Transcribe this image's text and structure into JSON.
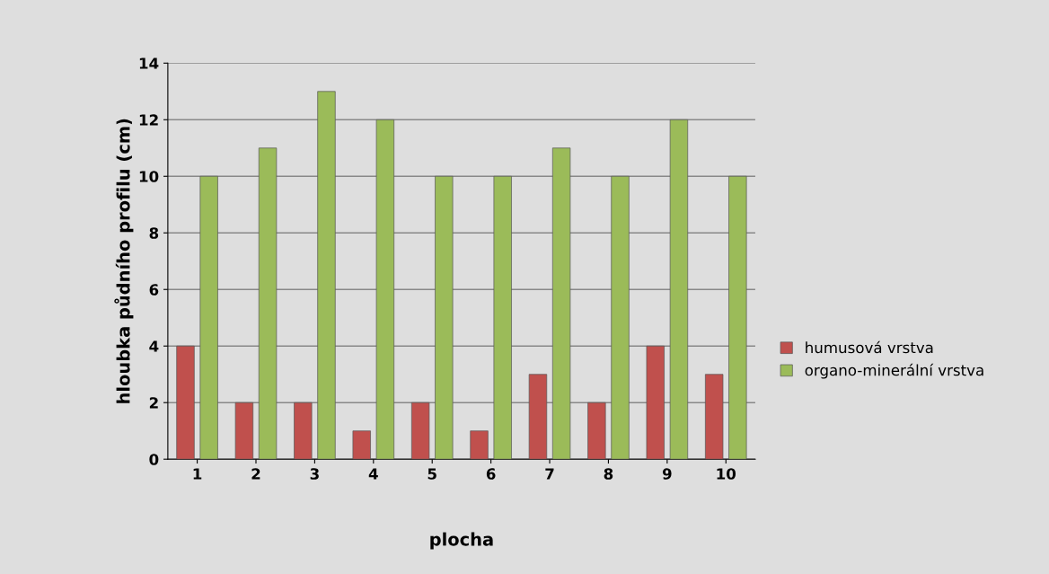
{
  "chart_data": {
    "type": "bar",
    "xlabel": "plocha",
    "ylabel": "hloubka půdního profilu (cm)",
    "categories": [
      "1",
      "2",
      "3",
      "4",
      "5",
      "6",
      "7",
      "8",
      "9",
      "10"
    ],
    "series": [
      {
        "name": "humusová vrstva",
        "color": "#c0504d",
        "values": [
          4,
          2,
          2,
          1,
          2,
          1,
          3,
          2,
          4,
          3
        ]
      },
      {
        "name": "organo-minerální vrstva",
        "color": "#9bbb59",
        "values": [
          10,
          11,
          13,
          12,
          10,
          10,
          11,
          10,
          12,
          10
        ]
      }
    ],
    "ylim": [
      0,
      14
    ],
    "yticks": [
      0,
      2,
      4,
      6,
      8,
      10,
      12,
      14
    ],
    "grid": "y",
    "legend": "right"
  }
}
